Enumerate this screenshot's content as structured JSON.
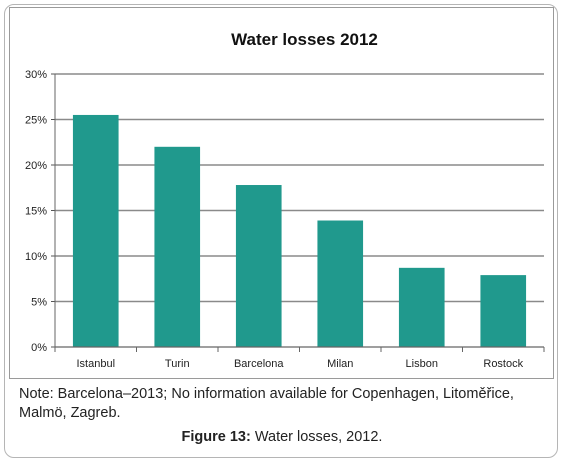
{
  "chart_data": {
    "type": "bar",
    "title": "Water losses 2012",
    "xlabel": "",
    "ylabel": "",
    "categories": [
      "Istanbul",
      "Turin",
      "Barcelona",
      "Milan",
      "Lisbon",
      "Rostock"
    ],
    "values": [
      25.5,
      22,
      17.8,
      13.9,
      8.7,
      7.9
    ],
    "ylim": [
      0,
      30
    ],
    "yticks": [
      0,
      5,
      10,
      15,
      20,
      25,
      30
    ],
    "ytick_labels": [
      "0%",
      "5%",
      "10%",
      "15%",
      "20%",
      "25%",
      "30%"
    ],
    "unit": "%",
    "grid": true,
    "legend": "none",
    "bar_color": "#20998d"
  },
  "note": "Note: Barcelona–2013; No information available for Copenhagen, Litoměřice, Malmö, Zagreb.",
  "caption": {
    "label": "Figure 13:",
    "text": " Water losses, 2012."
  }
}
